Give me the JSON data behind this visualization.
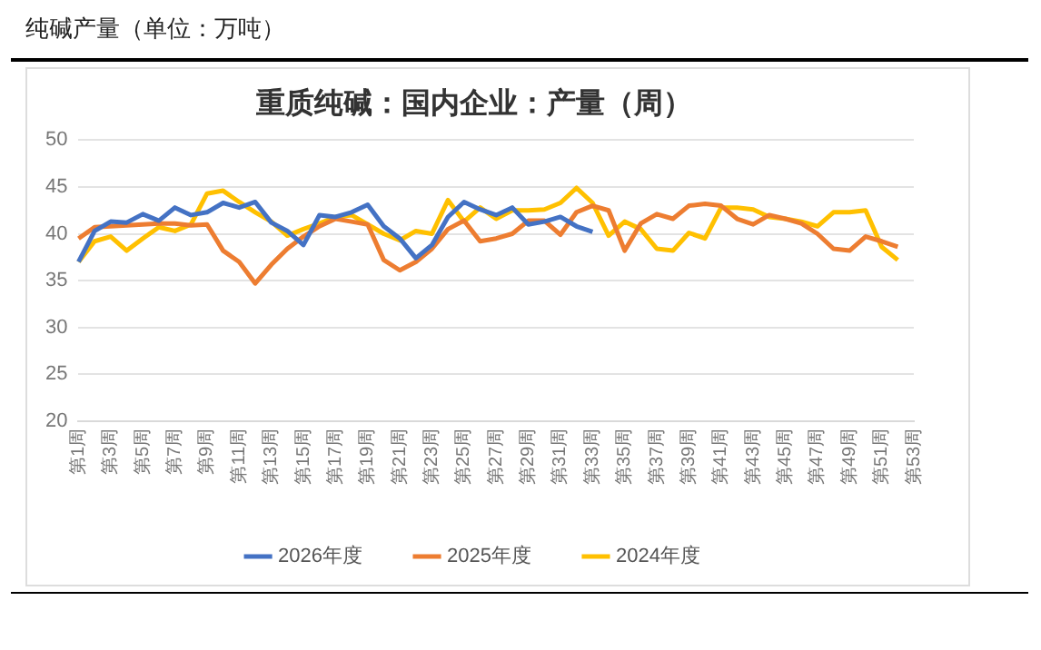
{
  "chart_data": {
    "type": "line",
    "title": "重质纯碱：国内企业：产量（周）",
    "annotations": [
      "纯碱产量（单位：万吨）"
    ],
    "categories": [
      "第1周",
      null,
      "第3周",
      null,
      "第5周",
      null,
      "第7周",
      null,
      "第9周",
      null,
      "第11周",
      null,
      "第13周",
      null,
      "第15周",
      null,
      "第17周",
      null,
      "第19周",
      null,
      "第21周",
      null,
      "第23周",
      null,
      "第25周",
      null,
      "第27周",
      null,
      "第29周",
      null,
      "第31周",
      null,
      "第33周",
      null,
      "第35周",
      null,
      "第37周",
      null,
      "第39周",
      null,
      "第41周",
      null,
      "第43周",
      null,
      "第45周",
      null,
      "第47周",
      null,
      "第49周",
      null,
      "第51周",
      null,
      "第53周"
    ],
    "series": [
      {
        "name": "2026年度",
        "color": "#4472c4",
        "values": [
          37.0,
          40.3,
          41.3,
          41.2,
          42.1,
          41.4,
          42.8,
          42.0,
          42.3,
          43.3,
          42.8,
          43.4,
          41.2,
          40.3,
          38.8,
          42.0,
          41.8,
          42.3,
          43.1,
          40.8,
          39.5,
          37.4,
          38.8,
          41.8,
          43.4,
          42.6,
          42.0,
          42.8,
          41.0,
          41.3,
          41.8,
          40.8,
          40.2,
          null,
          null,
          null,
          null,
          null,
          null,
          null,
          null,
          null,
          null,
          null,
          null,
          null,
          null,
          null,
          null,
          null,
          null,
          null,
          null
        ]
      },
      {
        "name": "2025年度",
        "color": "#ed7d31",
        "values": [
          39.5,
          40.7,
          40.8,
          40.9,
          41.0,
          41.1,
          41.1,
          40.9,
          41.0,
          38.2,
          37.0,
          34.7,
          36.7,
          38.4,
          39.7,
          40.8,
          41.6,
          41.3,
          41.0,
          37.2,
          36.1,
          37.0,
          38.4,
          40.5,
          41.4,
          39.2,
          39.5,
          40.0,
          41.4,
          41.4,
          39.9,
          42.3,
          43.0,
          42.5,
          38.2,
          41.1,
          42.1,
          41.6,
          43.0,
          43.2,
          43.0,
          41.6,
          41.0,
          42.0,
          41.6,
          41.1,
          40.0,
          38.4,
          38.2,
          39.7,
          39.2,
          38.6,
          null
        ]
      },
      {
        "name": "2024年度",
        "color": "#ffc000",
        "values": [
          37.0,
          39.2,
          39.7,
          38.2,
          39.5,
          40.7,
          40.3,
          41.0,
          44.3,
          44.6,
          43.4,
          42.3,
          41.3,
          39.8,
          40.5,
          41.1,
          41.8,
          42.0,
          41.0,
          40.0,
          39.3,
          40.3,
          40.0,
          43.6,
          41.3,
          42.8,
          41.6,
          42.5,
          42.5,
          42.6,
          43.3,
          44.9,
          43.3,
          39.8,
          41.3,
          40.5,
          38.4,
          38.2,
          40.1,
          39.5,
          42.8,
          42.8,
          42.6,
          41.8,
          41.6,
          41.3,
          40.8,
          42.3,
          42.3,
          42.5,
          38.6,
          37.2,
          null
        ]
      }
    ],
    "ylim": [
      20,
      50
    ],
    "yticks": [
      20,
      25,
      30,
      35,
      40,
      45,
      50
    ],
    "grid": "y",
    "legend": "bottom",
    "marker": "none",
    "line_style": "solid"
  }
}
